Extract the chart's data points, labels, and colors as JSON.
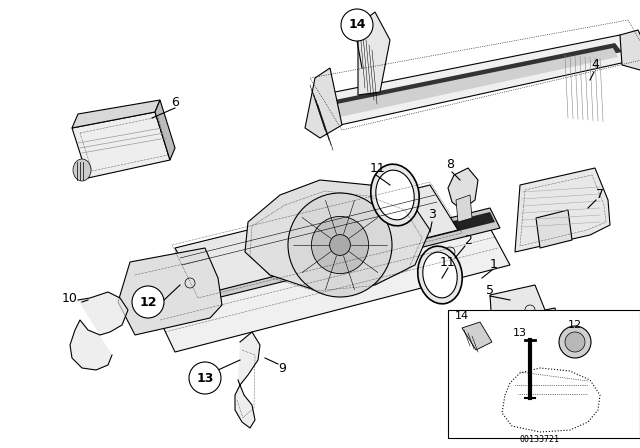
{
  "bg_color": "#ffffff",
  "line_color": "#000000",
  "fig_width": 6.4,
  "fig_height": 4.48,
  "dpi": 100,
  "part_number": "00133721"
}
